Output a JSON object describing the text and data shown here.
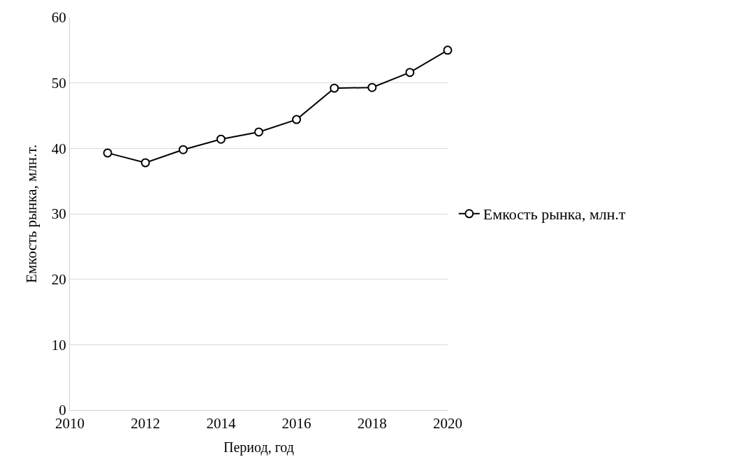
{
  "chart_data": {
    "type": "line",
    "xlabel": "Период, год",
    "ylabel": "Емкость рынка, млн.т.",
    "x": [
      2011,
      2012,
      2013,
      2014,
      2015,
      2016,
      2017,
      2018,
      2019,
      2020
    ],
    "series": [
      {
        "name": "Емкость рынка, млн.т",
        "color": "#000000",
        "values": [
          39.3,
          37.8,
          39.8,
          41.4,
          42.5,
          44.4,
          49.2,
          49.3,
          51.6,
          55.0
        ]
      }
    ],
    "xlim": [
      2010,
      2020
    ],
    "xticks": [
      2010,
      2012,
      2014,
      2016,
      2018,
      2020
    ],
    "ylim": [
      0,
      60
    ],
    "yticks": [
      0,
      10,
      20,
      30,
      40,
      50,
      60
    ],
    "grid": "y",
    "legend": "right",
    "marker": "circle",
    "line_style": "solid"
  }
}
